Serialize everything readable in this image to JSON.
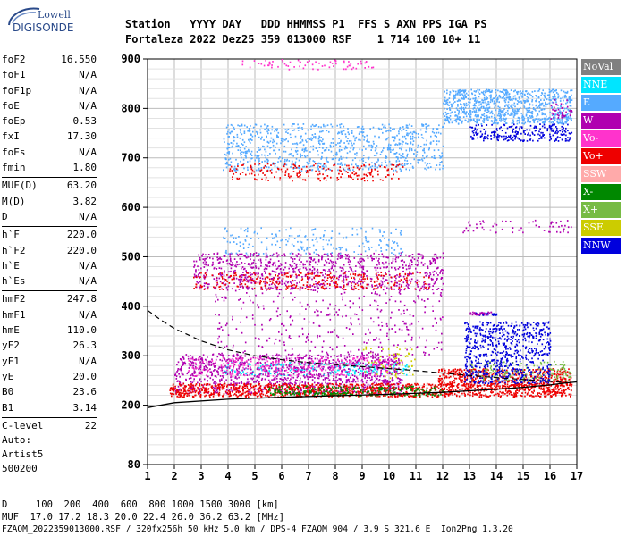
{
  "logo": {
    "line1": "Lowell",
    "line2": "DIGISONDE"
  },
  "header": {
    "line1": "Station   YYYY DAY   DDD HHMMSS P1  FFS S AXN PPS IGA PS",
    "line2": "Fortaleza 2022 Dez25 359 013000 RSF    1 714 100 10+ 11"
  },
  "params": [
    [
      {
        "label": "foF2",
        "value": "16.550"
      },
      {
        "label": "foF1",
        "value": "N/A"
      },
      {
        "label": "foF1p",
        "value": "N/A"
      },
      {
        "label": "foE",
        "value": "N/A"
      },
      {
        "label": "foEp",
        "value": "0.53"
      },
      {
        "label": "fxI",
        "value": "17.30"
      },
      {
        "label": "foEs",
        "value": "N/A"
      },
      {
        "label": "fmin",
        "value": "1.80"
      }
    ],
    [
      {
        "label": "MUF(D)",
        "value": "63.20"
      },
      {
        "label": "M(D)",
        "value": "3.82"
      },
      {
        "label": "D",
        "value": "N/A"
      }
    ],
    [
      {
        "label": "h`F",
        "value": "220.0"
      },
      {
        "label": "h`F2",
        "value": "220.0"
      },
      {
        "label": "h`E",
        "value": "N/A"
      },
      {
        "label": "h`Es",
        "value": "N/A"
      }
    ],
    [
      {
        "label": "hmF2",
        "value": "247.8"
      },
      {
        "label": "hmF1",
        "value": "N/A"
      },
      {
        "label": "hmE",
        "value": "110.0"
      },
      {
        "label": "yF2",
        "value": "26.3"
      },
      {
        "label": "yF1",
        "value": "N/A"
      },
      {
        "label": "yE",
        "value": "20.0"
      },
      {
        "label": "B0",
        "value": "23.6"
      },
      {
        "label": "B1",
        "value": "3.14"
      }
    ],
    [
      {
        "label": "C-level",
        "value": "22"
      }
    ]
  ],
  "auto": {
    "line1": "Auto:",
    "line2": "Artist5",
    "line3": "500200"
  },
  "legend": [
    {
      "label": "NoVal",
      "color": "#808080"
    },
    {
      "label": "NNE",
      "color": "#00e5ff"
    },
    {
      "label": "E",
      "color": "#55aaff"
    },
    {
      "label": "W",
      "color": "#b000b0"
    },
    {
      "label": "Vo-",
      "color": "#ff33cc"
    },
    {
      "label": "Vo+",
      "color": "#ee0000"
    },
    {
      "label": "SSW",
      "color": "#ffaaaa"
    },
    {
      "label": "X-",
      "color": "#008800"
    },
    {
      "label": "X+",
      "color": "#77bb44"
    },
    {
      "label": "SSE",
      "color": "#cccc00"
    },
    {
      "label": "NNW",
      "color": "#0000dd"
    }
  ],
  "footer": {
    "d_row": "D     100  200  400  600  800 1000 1500 3000 [km]",
    "muf_row": "MUF  17.0 17.2 18.3 20.0 22.4 26.0 36.2 63.2 [MHz]",
    "file_row": "FZAOM_2022359013000.RSF / 320fx256h 50 kHz 5.0 km / DPS-4 FZAOM 904 / 3.9 S 321.6 E  Ion2Png 1.3.20"
  },
  "chart_data": {
    "type": "scatter",
    "xlim": [
      1,
      17
    ],
    "ylim": [
      80,
      900
    ],
    "x_ticks": [
      "1",
      "2",
      "3",
      "4",
      "5",
      "6",
      "7",
      "8",
      "9",
      "10",
      "11",
      "12",
      "13",
      "14",
      "15",
      "16",
      "17"
    ],
    "y_ticks": [
      {
        "value": 80,
        "label": "80"
      },
      {
        "value": 200,
        "label": "200"
      },
      {
        "value": 300,
        "label": "300"
      },
      {
        "value": 400,
        "label": "400"
      },
      {
        "value": 500,
        "label": "500"
      },
      {
        "value": 600,
        "label": "600"
      },
      {
        "value": 700,
        "label": "700"
      },
      {
        "value": 800,
        "label": "800"
      },
      {
        "value": 900,
        "label": "900"
      }
    ],
    "grid": true,
    "profile_solid": [
      [
        1.0,
        195
      ],
      [
        2.0,
        205
      ],
      [
        4.0,
        212
      ],
      [
        6.0,
        216
      ],
      [
        8.0,
        219
      ],
      [
        10.0,
        222
      ],
      [
        12.0,
        226
      ],
      [
        13.0,
        229
      ],
      [
        14.0,
        232
      ],
      [
        15.0,
        236
      ],
      [
        16.0,
        241
      ],
      [
        16.6,
        245
      ],
      [
        17.0,
        247
      ]
    ],
    "profile_dashed": [
      [
        1.0,
        392
      ],
      [
        1.5,
        372
      ],
      [
        2.0,
        355
      ],
      [
        3.0,
        330
      ],
      [
        4.0,
        312
      ],
      [
        5.0,
        300
      ],
      [
        6.0,
        292
      ],
      [
        7.0,
        286
      ],
      [
        8.0,
        282
      ],
      [
        9.0,
        278
      ],
      [
        10.0,
        274
      ],
      [
        11.0,
        270
      ],
      [
        12.0,
        265
      ],
      [
        13.0,
        260
      ],
      [
        14.0,
        256
      ],
      [
        15.0,
        252
      ],
      [
        16.0,
        248
      ],
      [
        16.6,
        246
      ]
    ],
    "clusters": [
      {
        "group": "NNE",
        "x": [
          3.8,
          10.8
        ],
        "y": [
          262,
          288
        ],
        "n": 240
      },
      {
        "group": "W",
        "x": [
          2.0,
          10.5
        ],
        "y": [
          225,
          305
        ],
        "n": 1200
      },
      {
        "group": "Vo+",
        "x": [
          1.8,
          16.8
        ],
        "y": [
          218,
          245
        ],
        "n": 1300
      },
      {
        "group": "Vo+",
        "x": [
          11.8,
          16.8
        ],
        "y": [
          240,
          275
        ],
        "n": 500
      },
      {
        "group": "X-",
        "x": [
          5.5,
          12.0
        ],
        "y": [
          220,
          240
        ],
        "n": 260
      },
      {
        "group": "X+",
        "x": [
          13.0,
          16.8
        ],
        "y": [
          250,
          290
        ],
        "n": 160
      },
      {
        "group": "Vo-",
        "x": [
          2.5,
          10.0
        ],
        "y": [
          260,
          298
        ],
        "n": 260
      },
      {
        "group": "NNW",
        "x": [
          12.8,
          16.0
        ],
        "y": [
          245,
          370
        ],
        "n": 700
      },
      {
        "group": "SSE",
        "x": [
          9.0,
          11.0
        ],
        "y": [
          255,
          320
        ],
        "n": 60
      },
      {
        "group": "NNW",
        "x": [
          13.2,
          14.0
        ],
        "y": [
          383,
          388
        ],
        "n": 25
      },
      {
        "group": "W",
        "x": [
          13.0,
          13.8
        ],
        "y": [
          384,
          390
        ],
        "n": 30
      },
      {
        "group": "W",
        "x": [
          2.7,
          12.0
        ],
        "y": [
          435,
          510
        ],
        "n": 900
      },
      {
        "group": "Vo+",
        "x": [
          2.7,
          11.5
        ],
        "y": [
          435,
          470
        ],
        "n": 300
      },
      {
        "group": "E",
        "x": [
          3.8,
          10.5
        ],
        "y": [
          505,
          560
        ],
        "n": 200
      },
      {
        "group": "W",
        "x": [
          3.5,
          12.0
        ],
        "y": [
          300,
          440
        ],
        "n": 350
      },
      {
        "group": "W",
        "x": [
          12.5,
          16.8
        ],
        "y": [
          550,
          575
        ],
        "n": 60
      },
      {
        "group": "E",
        "x": [
          3.8,
          12.0
        ],
        "y": [
          675,
          770
        ],
        "n": 900
      },
      {
        "group": "Vo+",
        "x": [
          4.0,
          10.5
        ],
        "y": [
          655,
          690
        ],
        "n": 200
      },
      {
        "group": "E",
        "x": [
          12.0,
          16.8
        ],
        "y": [
          770,
          840
        ],
        "n": 900
      },
      {
        "group": "NNW",
        "x": [
          13.0,
          16.8
        ],
        "y": [
          735,
          770
        ],
        "n": 250
      },
      {
        "group": "W",
        "x": [
          16.0,
          16.8
        ],
        "y": [
          780,
          820
        ],
        "n": 40
      },
      {
        "group": "Vo-",
        "x": [
          4.5,
          9.5
        ],
        "y": [
          880,
          900
        ],
        "n": 70
      }
    ]
  }
}
